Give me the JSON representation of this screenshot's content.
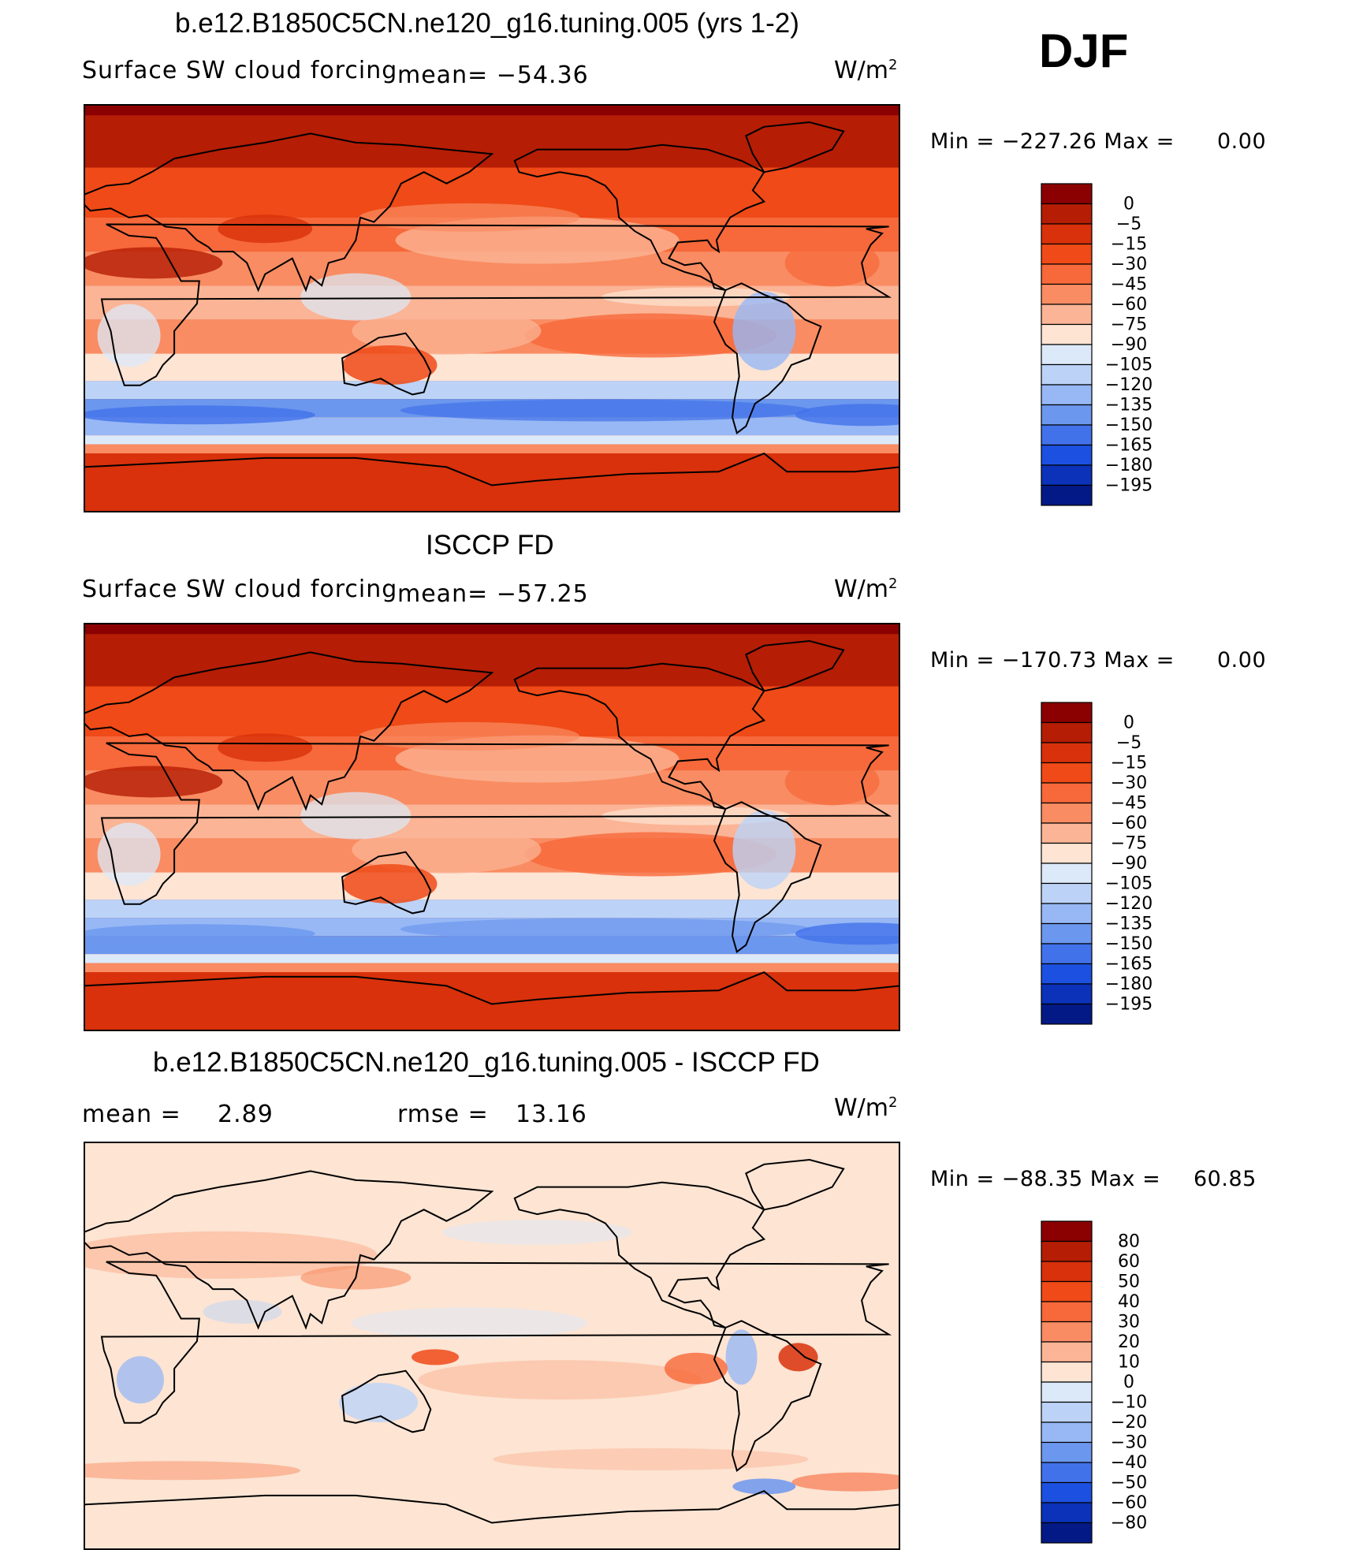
{
  "season": "DJF",
  "units": "W/m",
  "units_sup": "2",
  "chart_data": [
    {
      "type": "heatmap",
      "title": "b.e12.B1850C5CN.ne120_g16.tuning.005 (yrs 1-2)",
      "field": "Surface SW cloud forcing",
      "stat_text": "mean=  −54.36",
      "mean": -54.36,
      "min_text": "Min  =  −227.26  Max  =",
      "max_text": "0.00",
      "min": -227.26,
      "max": 0.0,
      "colorbar_levels": [
        "0",
        "−5",
        "−15",
        "−30",
        "−45",
        "−60",
        "−75",
        "−90",
        "−105",
        "−120",
        "−135",
        "−150",
        "−165",
        "−180",
        "−195"
      ],
      "colors": [
        "#8b0000",
        "#b51d05",
        "#d8310b",
        "#ef4a17",
        "#f7683a",
        "#f98c62",
        "#fbb495",
        "#fde4d3",
        "#dce9f9",
        "#bcd3f7",
        "#97b8f5",
        "#6c97ee",
        "#4272ea",
        "#1c50e0",
        "#0b32b8",
        "#031a86"
      ]
    },
    {
      "type": "heatmap",
      "title": "ISCCP FD",
      "field": "Surface SW cloud forcing",
      "stat_text": "mean=  −57.25",
      "mean": -57.25,
      "min_text": "Min  =  −170.73  Max  =",
      "max_text": "0.00",
      "min": -170.73,
      "max": 0.0,
      "colorbar_levels": [
        "0",
        "−5",
        "−15",
        "−30",
        "−45",
        "−60",
        "−75",
        "−90",
        "−105",
        "−120",
        "−135",
        "−150",
        "−165",
        "−180",
        "−195"
      ],
      "colors": [
        "#8b0000",
        "#b51d05",
        "#d8310b",
        "#ef4a17",
        "#f7683a",
        "#f98c62",
        "#fbb495",
        "#fde4d3",
        "#dce9f9",
        "#bcd3f7",
        "#97b8f5",
        "#6c97ee",
        "#4272ea",
        "#1c50e0",
        "#0b32b8",
        "#031a86"
      ]
    },
    {
      "type": "heatmap",
      "title": "b.e12.B1850C5CN.ne120_g16.tuning.005 - ISCCP FD",
      "mean_text": "mean  =",
      "mean_value": "2.89",
      "rmse_text": "rmse  =",
      "rmse_value": "13.16",
      "mean": 2.89,
      "rmse": 13.16,
      "min_text": "Min  =  −88.35  Max  =",
      "max_text": "60.85",
      "min": -88.35,
      "max": 60.85,
      "colorbar_levels": [
        "80",
        "60",
        "50",
        "40",
        "30",
        "20",
        "10",
        "0",
        "−10",
        "−20",
        "−30",
        "−40",
        "−50",
        "−60",
        "−80"
      ],
      "colors": [
        "#8b0000",
        "#b51d05",
        "#d8310b",
        "#ef4a17",
        "#f7683a",
        "#f98c62",
        "#fbb495",
        "#fde4d3",
        "#dce9f9",
        "#bcd3f7",
        "#97b8f5",
        "#6c97ee",
        "#4272ea",
        "#1c50e0",
        "#0b32b8",
        "#031a86"
      ]
    }
  ]
}
